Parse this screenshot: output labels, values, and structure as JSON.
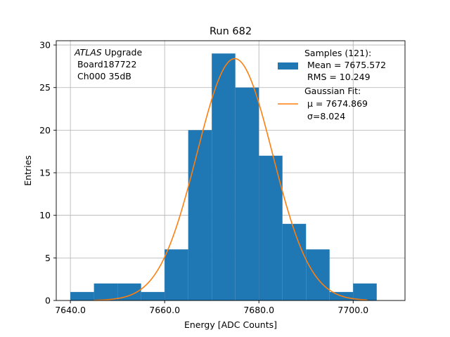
{
  "chart_data": {
    "type": "bar",
    "title": "Run 682",
    "xlabel": "Energy [ADC Counts]",
    "ylabel": "Entries",
    "xlim": [
      7637.0,
      7711.0
    ],
    "ylim": [
      0,
      30.5
    ],
    "x_ticks": [
      7640,
      7660,
      7680,
      7700
    ],
    "x_tick_labels": [
      "7640.0",
      "7660.0",
      "7680.0",
      "7700.0"
    ],
    "y_ticks": [
      0,
      5,
      10,
      15,
      20,
      25,
      30
    ],
    "y_tick_labels": [
      "0",
      "5",
      "10",
      "15",
      "20",
      "25",
      "30"
    ],
    "grid": true,
    "legend_position": "top-right",
    "annotation": {
      "italic_prefix": "ATLAS",
      "line1_rest": " Upgrade",
      "line2": " Board187722",
      "line3": " Ch000 35dB"
    },
    "histogram": {
      "name": "Samples",
      "legend_lines": [
        "Samples (121):",
        " Mean = 7675.572",
        " RMS = 10.249"
      ],
      "color": "#1f77b4",
      "bin_edges": [
        7640,
        7645,
        7650,
        7655,
        7660,
        7665,
        7670,
        7675,
        7680,
        7685,
        7690,
        7695,
        7700,
        7705
      ],
      "counts": [
        1,
        2,
        2,
        1,
        6,
        20,
        29,
        25,
        17,
        9,
        6,
        1,
        2
      ]
    },
    "fit": {
      "name": "Gaussian Fit",
      "legend_lines": [
        "Gaussian Fit:",
        " μ = 7674.869",
        " σ=8.024"
      ],
      "color": "#ff7f0e",
      "mu": 7674.869,
      "sigma": 8.024,
      "amplitude": 28.4,
      "x_range": [
        7645,
        7703
      ]
    }
  }
}
